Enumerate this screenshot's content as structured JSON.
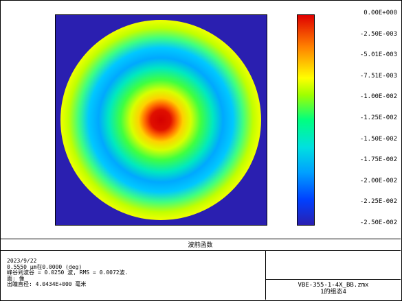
{
  "colorbar": {
    "labels": [
      "0.00E+000",
      "-2.50E-003",
      "-5.01E-003",
      "-7.51E-003",
      "-1.00E-002",
      "-1.25E-002",
      "-1.50E-002",
      "-1.75E-002",
      "-2.00E-002",
      "-2.25E-002",
      "-2.50E-002"
    ]
  },
  "plot_title": "波前函数",
  "info": {
    "line1": "2023/9/22",
    "line2": "0.5550 µm在0.0000 (deg)",
    "line3": "峰谷到波谷 = 0.0250 波, RMS = 0.0072波.",
    "line4": "面: 像",
    "line5": "出瞳直径: 4.0434E+000 毫米"
  },
  "file": {
    "name": "VBE-355-1-4X_BB.zmx",
    "config": "1的组态4"
  },
  "colors": {
    "background": "#2a1fb0",
    "center": "#e00000"
  }
}
